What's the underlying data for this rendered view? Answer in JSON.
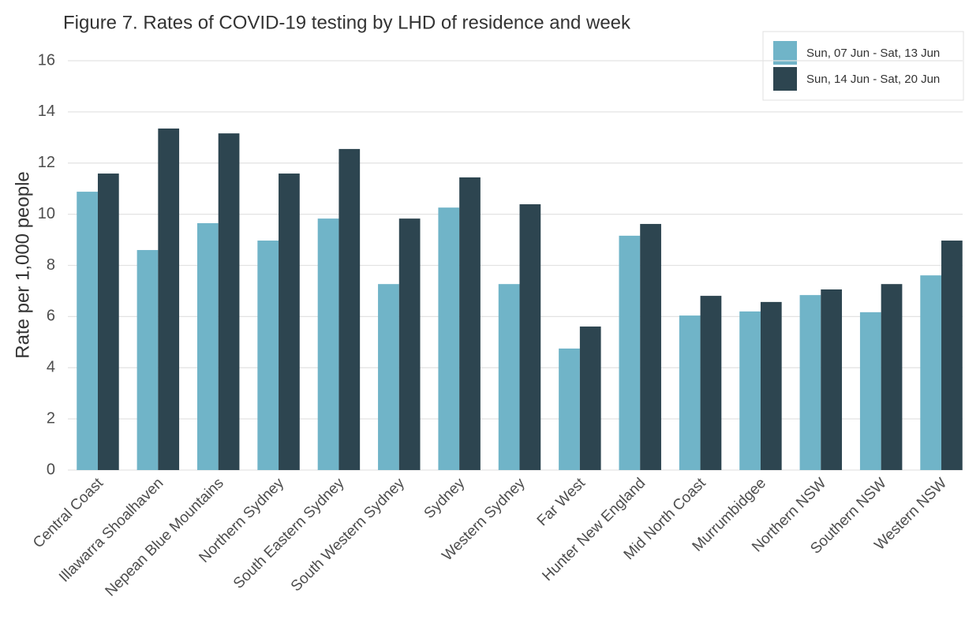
{
  "chart_data": {
    "type": "bar",
    "title": "Figure 7. Rates of COVID-19 testing by LHD of residence and week",
    "y_label": "Rate per 1,000 people",
    "categories": [
      "Central Coast",
      "Illawarra Shoalhaven",
      "Nepean Blue Mountains",
      "Northern Sydney",
      "South Eastern Sydney",
      "South Western Sydney",
      "Sydney",
      "Western Sydney",
      "Far West",
      "Hunter New England",
      "Mid North Coast",
      "Murrumbidgee",
      "Northern NSW",
      "Southern NSW",
      "Western NSW"
    ],
    "series": [
      {
        "name": "Sun, 07 Jun - Sat, 13 Jun",
        "color": "#70b4c8",
        "values": [
          10.88,
          8.6,
          9.65,
          8.97,
          9.83,
          7.27,
          10.26,
          7.27,
          4.75,
          9.16,
          6.04,
          6.2,
          6.84,
          6.17,
          7.61
        ]
      },
      {
        "name": "Sun, 14 Jun - Sat, 20 Jun",
        "color": "#2d4550",
        "values": [
          11.59,
          13.35,
          13.16,
          11.59,
          12.55,
          9.83,
          11.44,
          10.39,
          5.61,
          9.62,
          6.81,
          6.57,
          7.06,
          7.27,
          8.97
        ]
      }
    ],
    "ylim": [
      0,
      16
    ],
    "yticks": [
      0,
      2,
      4,
      6,
      8,
      10,
      12,
      14,
      16
    ],
    "grid": true,
    "legend": "top-right"
  }
}
